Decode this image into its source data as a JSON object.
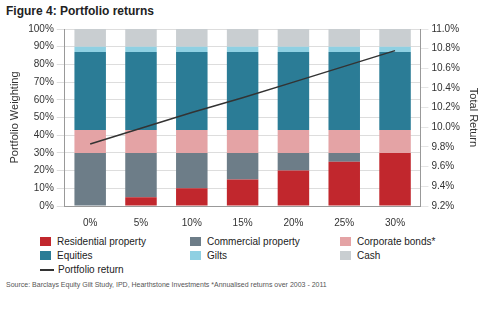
{
  "chart_data": {
    "type": "bar",
    "title": "Figure 4: Portfolio returns",
    "y_label": "Portfolio Weighting",
    "y2_label": "Total Return",
    "annotations": [
      "Source: Barclays Equity Gilt Study, IPD, Hearthstone Investments *Annualised returns over 2003 - 2011"
    ],
    "categories": [
      "0%",
      "5%",
      "10%",
      "15%",
      "20%",
      "25%",
      "30%"
    ],
    "stacked": true,
    "grid": true,
    "legend": "bottom",
    "ylim": [
      0,
      100
    ],
    "yticks": [
      {
        "value": 0,
        "label": "0%"
      },
      {
        "value": 10,
        "label": "10%"
      },
      {
        "value": 20,
        "label": "20%"
      },
      {
        "value": 30,
        "label": "30%"
      },
      {
        "value": 40,
        "label": "40%"
      },
      {
        "value": 50,
        "label": "50%"
      },
      {
        "value": 60,
        "label": "60%"
      },
      {
        "value": 70,
        "label": "70%"
      },
      {
        "value": 80,
        "label": "80%"
      },
      {
        "value": 90,
        "label": "90%"
      },
      {
        "value": 100,
        "label": "100%"
      }
    ],
    "y2lim": [
      9.2,
      11.0
    ],
    "y2ticks": [
      {
        "value": 9.2,
        "label": "9.2%"
      },
      {
        "value": 9.4,
        "label": "9.4%"
      },
      {
        "value": 9.6,
        "label": "9.6%"
      },
      {
        "value": 9.8,
        "label": "9.8%"
      },
      {
        "value": 10.0,
        "label": "10.0%"
      },
      {
        "value": 10.2,
        "label": "10.2%"
      },
      {
        "value": 10.4,
        "label": "10.4%"
      },
      {
        "value": 10.6,
        "label": "10.6%"
      },
      {
        "value": 10.8,
        "label": "10.8%"
      },
      {
        "value": 11.0,
        "label": "11.0%"
      }
    ],
    "series": [
      {
        "name": "Residential property",
        "color": "#c1272d",
        "values": [
          0,
          5,
          10,
          15,
          20,
          25,
          30
        ]
      },
      {
        "name": "Commercial property",
        "color": "#6d7d88",
        "values": [
          30,
          25,
          20,
          15,
          10,
          5,
          0
        ]
      },
      {
        "name": "Corporate bonds*",
        "color": "#e4a3a5",
        "values": [
          13,
          13,
          13,
          13,
          13,
          13,
          13
        ]
      },
      {
        "name": "Equities",
        "color": "#2b7c96",
        "values": [
          44,
          44,
          44,
          44,
          44,
          44,
          44
        ]
      },
      {
        "name": "Gilts",
        "color": "#8fd0e2",
        "values": [
          3,
          3,
          3,
          3,
          3,
          3,
          3
        ]
      },
      {
        "name": "Cash",
        "color": "#c9ced1",
        "values": [
          10,
          10,
          10,
          10,
          10,
          10,
          10
        ]
      },
      {
        "name": "Portfolio return",
        "type": "line",
        "axis": "y2",
        "color": "#333333",
        "values": [
          9.83,
          9.99,
          10.15,
          10.3,
          10.46,
          10.62,
          10.78
        ]
      }
    ]
  }
}
